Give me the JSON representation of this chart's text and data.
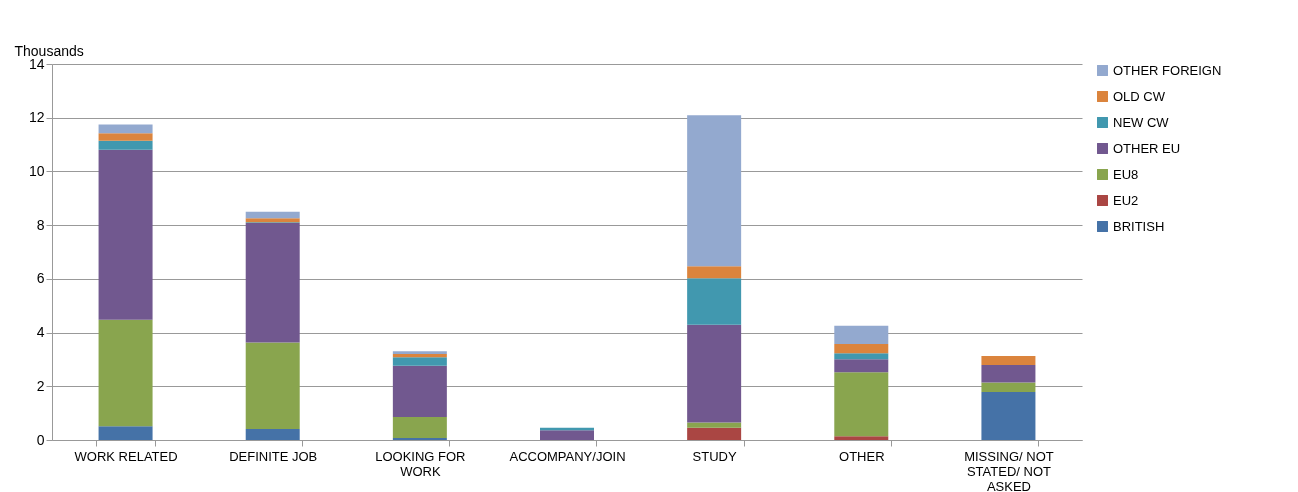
{
  "chart_data": {
    "type": "bar",
    "stacked": true,
    "ylabel": "Thousands",
    "categories": [
      "WORK RELATED",
      "DEFINITE JOB",
      "LOOKING FOR WORK",
      "ACCOMPANY/JOIN",
      "STUDY",
      "OTHER",
      "MISSING/ NOT STATED/ NOT ASKED"
    ],
    "series": [
      {
        "name": "BRITISH",
        "color": "#4572a7",
        "values": [
          0.51,
          0.41,
          0.07,
          0,
          0,
          0,
          1.79
        ]
      },
      {
        "name": "EU2",
        "color": "#aa4643",
        "values": [
          0,
          0,
          0,
          0,
          0.46,
          0.14,
          0
        ]
      },
      {
        "name": "EU8",
        "color": "#89a54e",
        "values": [
          3.97,
          3.22,
          0.79,
          0,
          0.19,
          2.38,
          0.35
        ]
      },
      {
        "name": "OTHER EU",
        "color": "#71588f",
        "values": [
          6.33,
          4.45,
          1.9,
          0.36,
          3.64,
          0.49,
          0.65
        ]
      },
      {
        "name": "NEW CW",
        "color": "#4198af",
        "values": [
          0.33,
          0.03,
          0.32,
          0.1,
          1.73,
          0.22,
          0
        ]
      },
      {
        "name": "OLD CW",
        "color": "#db843d",
        "values": [
          0.28,
          0.15,
          0.12,
          0,
          0.45,
          0.34,
          0.34
        ]
      },
      {
        "name": "OTHER FOREIGN",
        "color": "#93a9cf",
        "values": [
          0.33,
          0.24,
          0.1,
          0,
          5.62,
          0.68,
          0
        ]
      }
    ],
    "ylim": [
      0,
      14
    ],
    "yticks": [
      0,
      2,
      4,
      6,
      8,
      10,
      12,
      14
    ],
    "grid": "y",
    "legend": "right"
  }
}
